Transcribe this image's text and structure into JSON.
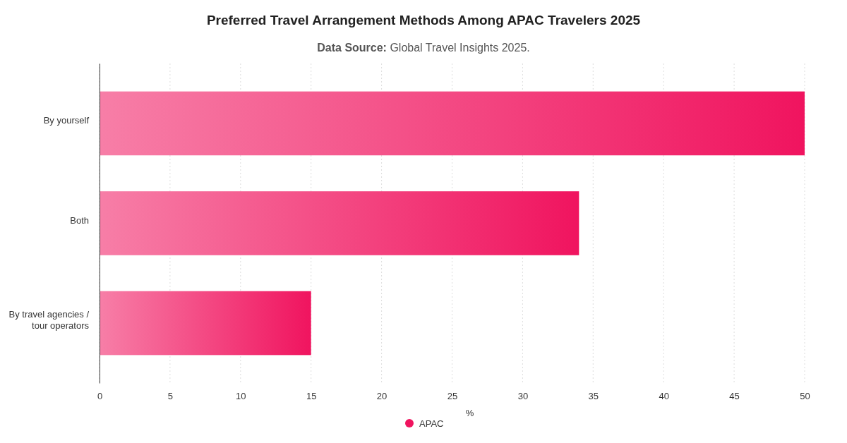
{
  "chart_data": {
    "type": "bar",
    "orientation": "horizontal",
    "title": "Preferred Travel Arrangement Methods Among APAC Travelers 2025",
    "subtitle": "Data Source: Global Travel Insights 2025.",
    "categories": [
      "By yourself",
      "Both",
      "By travel agencies / tour operators"
    ],
    "series": [
      {
        "name": "APAC",
        "color": "#f0145f",
        "values": [
          50,
          34,
          15
        ]
      }
    ],
    "xlim": [
      0,
      50
    ],
    "xticks": [
      0,
      5,
      10,
      15,
      20,
      25,
      30,
      35,
      40,
      45,
      50
    ],
    "xlabel": "%",
    "grid": "x",
    "legend": "bottom"
  }
}
